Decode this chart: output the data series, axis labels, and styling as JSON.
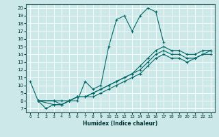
{
  "xlabel": "Humidex (Indice chaleur)",
  "ylabel": "",
  "bg_color": "#cce8e8",
  "line_color": "#006666",
  "marker": "+",
  "markersize": 3,
  "linewidth": 0.8,
  "xlim": [
    -0.5,
    23.5
  ],
  "ylim": [
    6.5,
    20.5
  ],
  "xticks": [
    0,
    1,
    2,
    3,
    4,
    5,
    6,
    7,
    8,
    9,
    10,
    11,
    12,
    13,
    14,
    15,
    16,
    17,
    18,
    19,
    20,
    21,
    22,
    23
  ],
  "yticks": [
    7,
    8,
    9,
    10,
    11,
    12,
    13,
    14,
    15,
    16,
    17,
    18,
    19,
    20
  ],
  "series": [
    {
      "x": [
        0,
        1,
        2,
        3,
        4,
        5,
        6,
        7,
        8,
        9,
        10,
        11,
        12,
        13,
        14,
        15,
        16,
        17
      ],
      "y": [
        10.5,
        8.0,
        7.0,
        7.5,
        7.5,
        8.0,
        8.0,
        10.5,
        9.5,
        10.0,
        15.0,
        18.5,
        19.0,
        17.0,
        19.0,
        20.0,
        19.5,
        15.5
      ]
    },
    {
      "x": [
        1,
        3,
        4,
        5,
        6,
        7,
        8,
        9,
        10,
        11,
        12,
        13,
        14,
        15,
        16,
        17,
        18,
        19,
        20,
        21,
        22,
        23
      ],
      "y": [
        8.0,
        8.0,
        8.0,
        8.0,
        8.5,
        8.5,
        9.0,
        9.5,
        10.0,
        10.5,
        11.0,
        11.5,
        12.5,
        13.5,
        14.5,
        15.0,
        14.5,
        14.5,
        14.0,
        14.0,
        14.5,
        14.5
      ]
    },
    {
      "x": [
        1,
        3,
        4,
        5,
        6,
        7,
        8,
        9,
        10,
        11,
        12,
        13,
        14,
        15,
        16,
        17,
        18,
        19,
        20,
        21,
        22,
        23
      ],
      "y": [
        8.0,
        8.0,
        7.5,
        8.0,
        8.5,
        8.5,
        9.0,
        9.5,
        10.0,
        10.5,
        11.0,
        11.5,
        12.0,
        13.0,
        14.0,
        14.5,
        14.0,
        14.0,
        13.5,
        13.5,
        14.0,
        14.5
      ]
    },
    {
      "x": [
        1,
        3,
        4,
        5,
        6,
        7,
        8,
        9,
        10,
        11,
        12,
        13,
        14,
        15,
        16,
        17,
        18,
        19,
        20,
        21,
        22,
        23
      ],
      "y": [
        8.0,
        7.5,
        7.5,
        8.0,
        8.5,
        8.5,
        8.5,
        9.0,
        9.5,
        10.0,
        10.5,
        11.0,
        11.5,
        12.5,
        13.5,
        14.0,
        13.5,
        13.5,
        13.0,
        13.5,
        14.0,
        14.0
      ]
    }
  ]
}
